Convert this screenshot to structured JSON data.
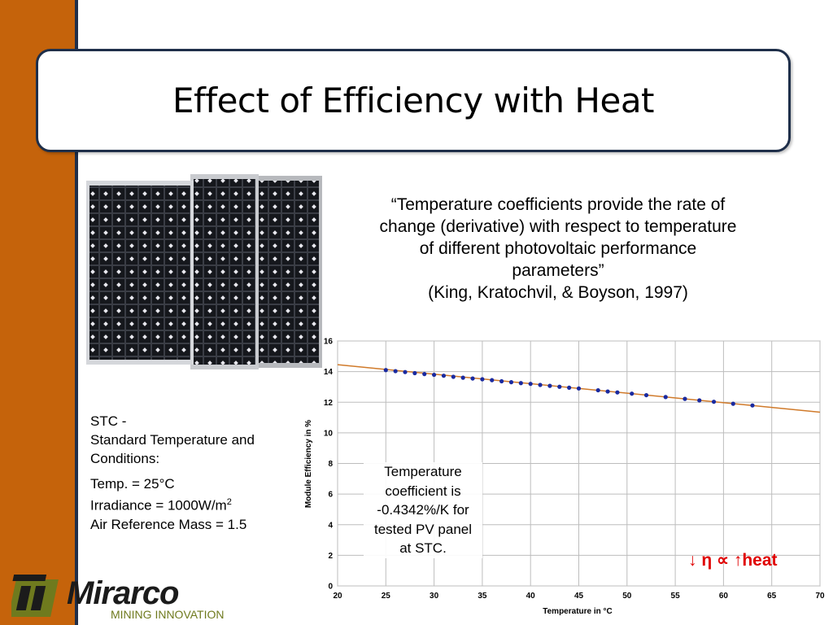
{
  "slide": {
    "title": "Effect of Efficiency with Heat",
    "quote_lines": [
      "“Temperature coefficients provide the rate of",
      "change (derivative) with respect to temperature",
      "of different photovoltaic performance",
      "parameters”",
      "(King, Kratochvil, & Boyson, 1997)"
    ],
    "stc": {
      "line1": "STC -",
      "line2": "Standard Temperature and",
      "line3": "Conditions:",
      "temp": "Temp. = 25°C",
      "irradiance_prefix": "Irradiance = 1000W/m",
      "irradiance_sup": "2",
      "air_mass": "Air Reference Mass = 1.5"
    },
    "callout_lines": [
      "Temperature",
      "coefficient is",
      "-0.4342%/K for",
      "tested PV panel",
      "at STC."
    ],
    "relation": "↓ η ∝ ↑heat",
    "logo": {
      "brand": "Mirarco",
      "tagline": "MINING INNOVATION"
    }
  },
  "colors": {
    "sidebar": "#c5630b",
    "border": "#1f2f4a",
    "trend": "#d07a2a",
    "points": "#1a2aa0",
    "relation": "#e00000",
    "logo_green": "#6f7a1e"
  },
  "chart_data": {
    "type": "scatter",
    "xlabel": "Temperature in °C",
    "ylabel": "Module Efficiency in %",
    "xlim": [
      20,
      70
    ],
    "ylim": [
      0,
      16
    ],
    "xticks": [
      20,
      25,
      30,
      35,
      40,
      45,
      50,
      55,
      60,
      65,
      70
    ],
    "yticks": [
      0,
      2,
      4,
      6,
      8,
      10,
      12,
      14,
      16
    ],
    "grid": true,
    "trendline": {
      "x": [
        20,
        70
      ],
      "y": [
        14.45,
        11.35
      ]
    },
    "points": {
      "x": [
        25,
        26,
        27,
        28,
        29,
        30,
        31,
        32,
        33,
        34,
        35,
        36,
        37,
        38,
        39,
        40,
        41,
        42,
        43,
        44,
        45,
        47,
        48,
        49,
        50.5,
        52,
        54,
        56,
        57.5,
        59,
        61,
        63
      ],
      "y": [
        14.1,
        14.03,
        13.97,
        13.9,
        13.84,
        13.79,
        13.73,
        13.66,
        13.6,
        13.55,
        13.5,
        13.44,
        13.37,
        13.31,
        13.25,
        13.2,
        13.13,
        13.07,
        13.01,
        12.95,
        12.9,
        12.78,
        12.7,
        12.64,
        12.56,
        12.46,
        12.34,
        12.22,
        12.12,
        12.03,
        11.9,
        11.79
      ]
    }
  }
}
